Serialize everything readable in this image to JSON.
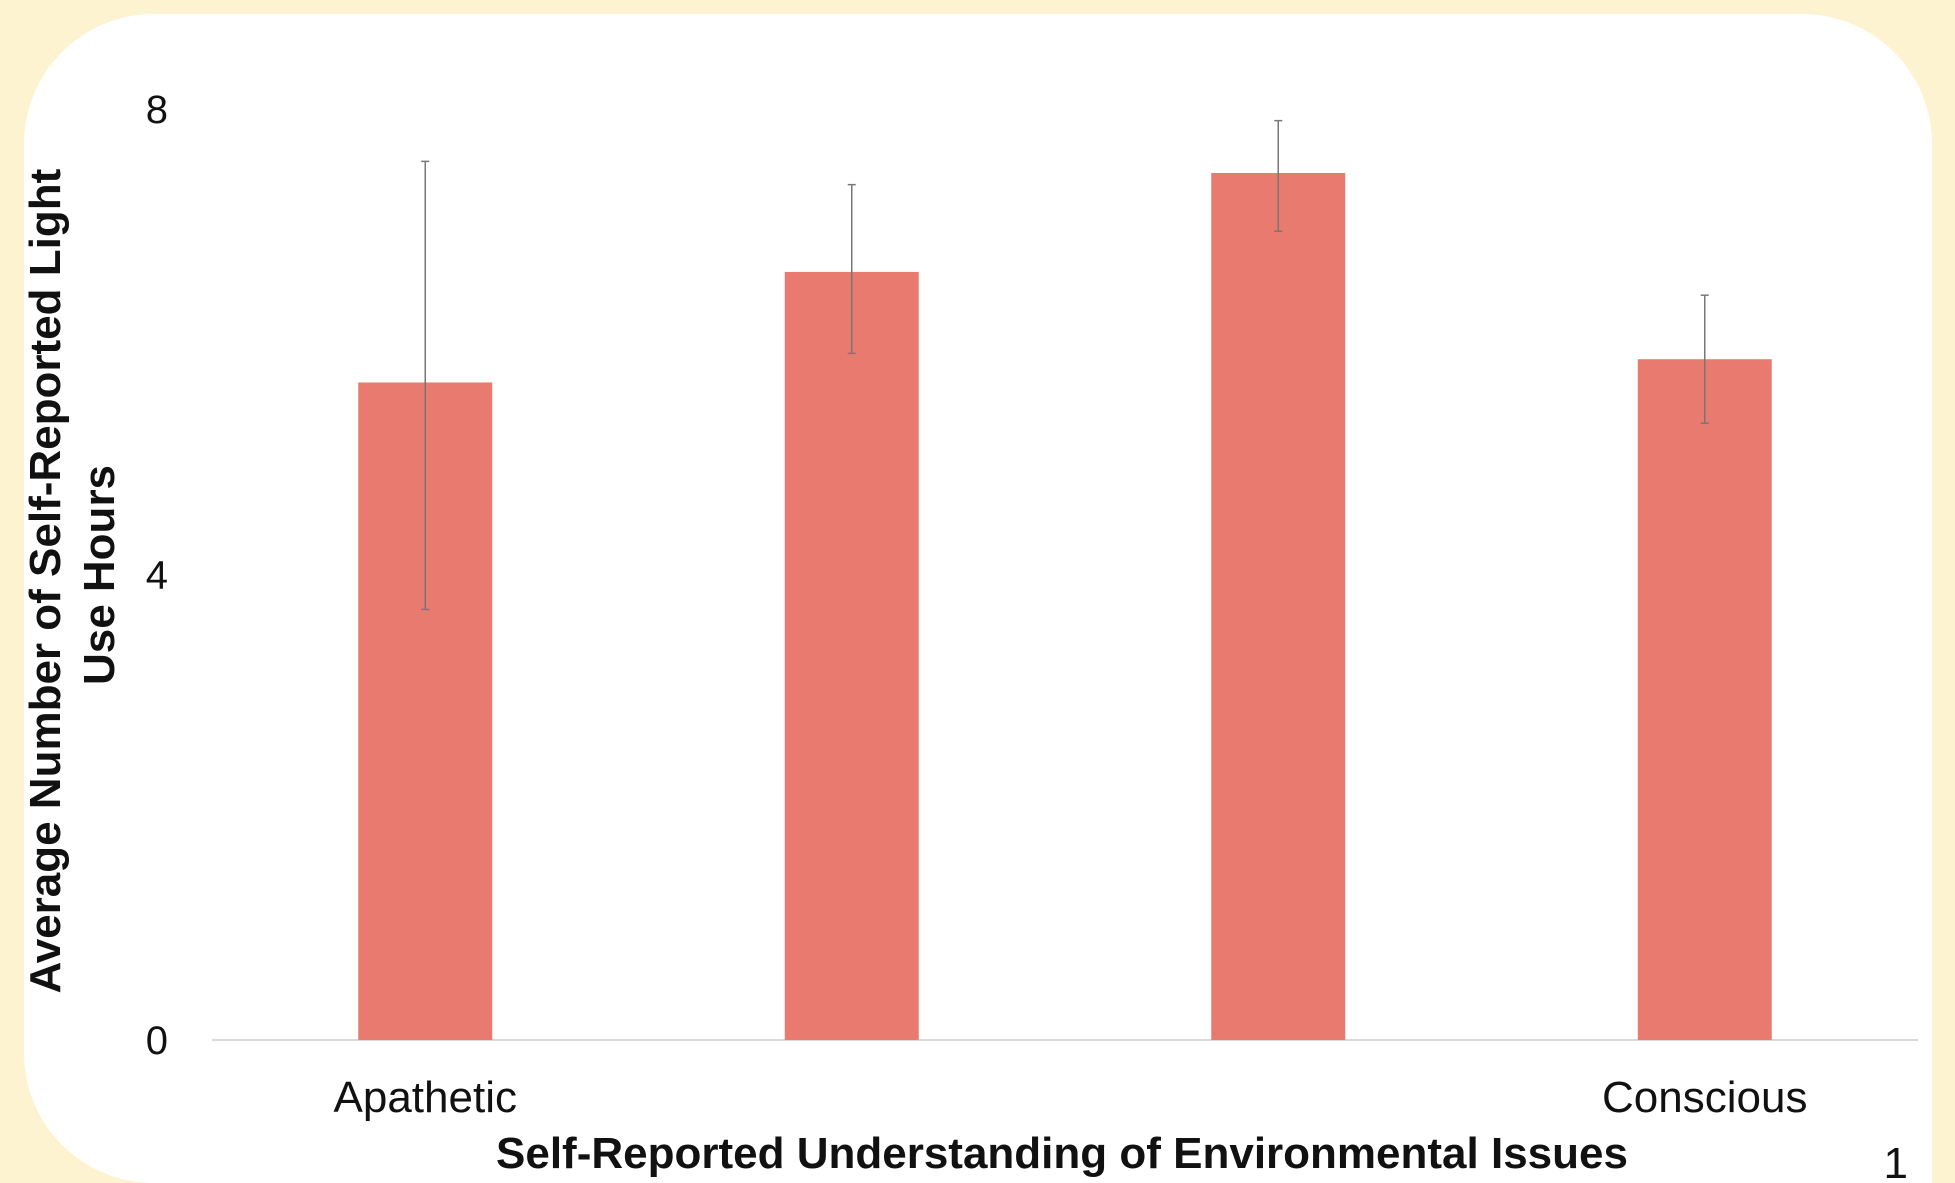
{
  "page_number": "1",
  "chart_data": {
    "type": "bar",
    "categories": [
      "Apathetic",
      "",
      "",
      "Conscious"
    ],
    "values": [
      5.65,
      6.6,
      7.45,
      5.85
    ],
    "error_bars": [
      {
        "low": 3.7,
        "high": 7.55
      },
      {
        "low": 5.9,
        "high": 7.35
      },
      {
        "low": 6.95,
        "high": 7.9
      },
      {
        "low": 5.3,
        "high": 6.4
      }
    ],
    "xlabel": "Self-Reported Understanding of Environmental Issues",
    "ylabel_lines": [
      "Average Number of Self-Reported Light",
      "Use Hours"
    ],
    "ylim": [
      0,
      8
    ],
    "yticks": [
      0,
      4,
      8
    ],
    "ytick_labels": [
      "0",
      "4",
      "8"
    ],
    "grid": false,
    "legend": "none",
    "bar_color": "#e87a70",
    "error_color": "#777777"
  }
}
